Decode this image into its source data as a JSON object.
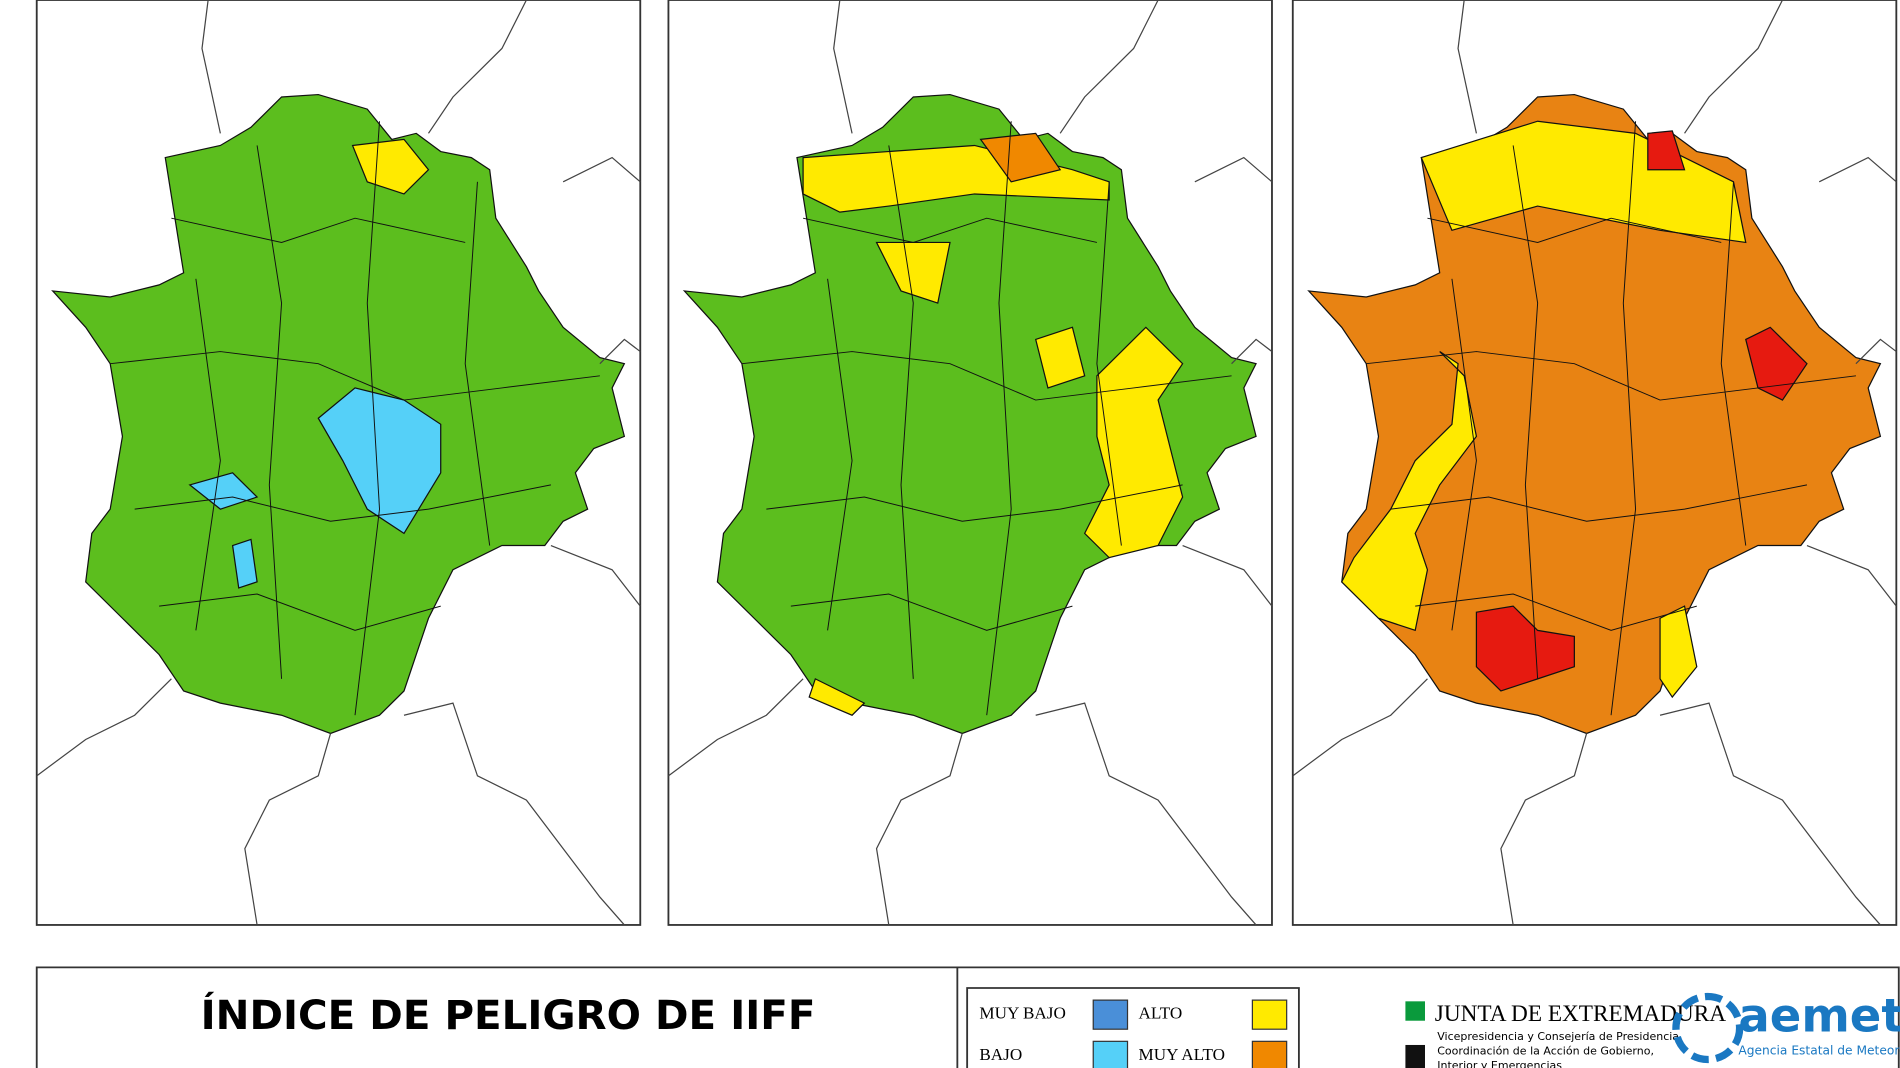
{
  "title": "ÍNDICE DE PELIGRO DE IIFF",
  "legend": [
    {
      "label": "MUY BAJO",
      "color": "#4a8fd8"
    },
    {
      "label": "ALTO",
      "color": "#ffea00"
    },
    {
      "label": "BAJO",
      "color": "#55d0f8"
    },
    {
      "label": "MUY ALTO",
      "color": "#f08800"
    }
  ],
  "logos": {
    "junta": "JUNTA DE EXTREMADURA",
    "junta_subtitle": [
      "Vicepresidencia y Consejería de Presidencia,",
      "Coordinación de la Acción de Gobierno,",
      "Interior y Emergencias"
    ],
    "aemet": "aemet",
    "aemet_subtitle": "Agencia Estatal de Meteorología"
  }
}
